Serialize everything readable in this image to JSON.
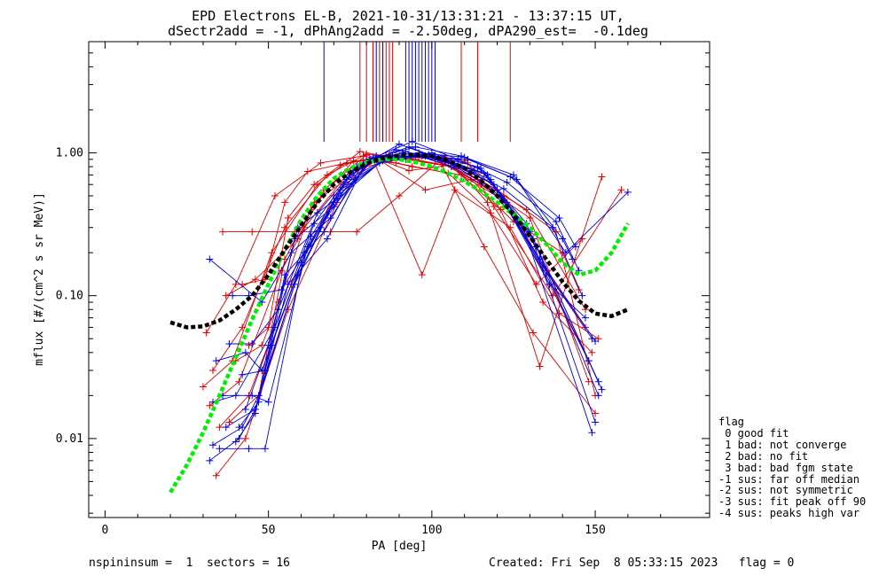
{
  "title_line1": "EPD Electrons EL-B, 2021-10-31/13:31:21 - 13:37:15 UT,",
  "title_line2": "dSectr2add = -1, dPhAng2add = -2.50deg, dPA290_est=  -0.1deg",
  "footer_left": "nspininsum =  1  sectors = 16",
  "footer_right": "Created: Fri Sep  8 05:33:15 2023   flag = 0",
  "legend": {
    "title": "flag",
    "items": [
      " 0 good fit",
      " 1 bad: not converge",
      " 2 bad: no fit",
      " 3 bad: bad fgm state",
      "-1 sus: far off median",
      "-2 sus: not symmetric",
      "-3 sus: fit peak off 90",
      "-4 sus: peaks high var"
    ]
  },
  "colors": {
    "red_series": "#e00000",
    "blue_series": "#0000e0",
    "median_fit": "#000000",
    "alt_fit": "#00ee00"
  },
  "chart_data": {
    "type": "line",
    "xlabel": "PA [deg]",
    "ylabel": "mflux [#/(cm^2 s sr MeV)]",
    "xlim": [
      -5,
      185
    ],
    "ylim": [
      0.0028,
      6.0
    ],
    "yscale": "log",
    "x_ticks": [
      0,
      50,
      100,
      150
    ],
    "x_tick_labels": [
      "0",
      "50",
      "100",
      "150"
    ],
    "y_ticks": [
      0.01,
      0.1,
      1.0
    ],
    "y_tick_labels": [
      "0.01",
      "0.10",
      "1.00"
    ],
    "grid": false,
    "red_series": [
      {
        "x": [
          33,
          42,
          55,
          68,
          80,
          95,
          108,
          122,
          136,
          148
        ],
        "y": [
          0.03,
          0.06,
          0.3,
          0.7,
          0.98,
          0.9,
          0.78,
          0.5,
          0.12,
          0.035
        ]
      },
      {
        "x": [
          31,
          40,
          52,
          66,
          79,
          94,
          109,
          123,
          135,
          147
        ],
        "y": [
          0.055,
          0.12,
          0.5,
          0.85,
          0.95,
          0.8,
          0.7,
          0.45,
          0.15,
          0.06
        ]
      },
      {
        "x": [
          35,
          44,
          57,
          70,
          81,
          96,
          110,
          120,
          138,
          150
        ],
        "y": [
          0.012,
          0.02,
          0.12,
          0.5,
          0.85,
          0.95,
          0.88,
          0.55,
          0.28,
          0.02
        ]
      },
      {
        "x": [
          30,
          39,
          51,
          65,
          78,
          92,
          106,
          121,
          134,
          149
        ],
        "y": [
          0.023,
          0.035,
          0.2,
          0.6,
          1.02,
          0.9,
          0.8,
          0.4,
          0.09,
          0.04
        ]
      },
      {
        "x": [
          36,
          45,
          58,
          69,
          77,
          90,
          104,
          117,
          133,
          152
        ],
        "y": [
          0.28,
          0.28,
          0.28,
          0.28,
          0.28,
          0.5,
          0.95,
          0.45,
          0.032,
          0.68
        ]
      },
      {
        "x": [
          34,
          43,
          56,
          71,
          82,
          97,
          107,
          124,
          139,
          151
        ],
        "y": [
          0.0055,
          0.01,
          0.08,
          0.45,
          0.9,
          0.14,
          0.55,
          0.3,
          0.075,
          0.05
        ]
      },
      {
        "x": [
          32,
          41,
          54,
          67,
          80,
          93,
          111,
          119,
          137,
          158
        ],
        "y": [
          0.017,
          0.025,
          0.15,
          0.55,
          0.97,
          0.75,
          0.85,
          0.42,
          0.1,
          0.55
        ]
      },
      {
        "x": [
          37,
          46,
          59,
          64,
          83,
          98,
          112,
          125,
          140,
          145
        ],
        "y": [
          0.1,
          0.13,
          0.25,
          0.45,
          0.92,
          0.55,
          0.65,
          0.33,
          0.2,
          0.11
        ]
      },
      {
        "x": [
          38,
          47,
          55,
          63,
          76,
          89,
          105,
          118,
          132,
          146
        ],
        "y": [
          0.013,
          0.02,
          0.18,
          0.4,
          0.88,
          0.85,
          0.72,
          0.38,
          0.12,
          0.25
        ]
      },
      {
        "x": [
          40,
          48,
          53,
          61,
          75,
          91,
          103,
          116,
          131,
          150
        ],
        "y": [
          0.035,
          0.045,
          0.09,
          0.3,
          0.75,
          0.92,
          0.83,
          0.22,
          0.055,
          0.015
        ]
      },
      {
        "x": [
          42,
          49,
          55,
          62,
          74,
          87,
          101,
          115,
          130,
          148
        ],
        "y": [
          0.12,
          0.13,
          0.45,
          0.74,
          0.85,
          0.97,
          0.9,
          0.6,
          0.35,
          0.025
        ]
      },
      {
        "x": [
          44,
          50,
          56,
          64,
          72,
          86,
          100,
          114,
          129,
          147
        ],
        "y": [
          0.045,
          0.06,
          0.35,
          0.6,
          0.82,
          0.96,
          0.93,
          0.65,
          0.4,
          0.08
        ]
      }
    ],
    "blue_series": [
      {
        "x": [
          32,
          41,
          46,
          58,
          70,
          84,
          98,
          113,
          128,
          149
        ],
        "y": [
          0.007,
          0.01,
          0.016,
          0.12,
          0.45,
          0.85,
          0.95,
          0.75,
          0.3,
          0.011
        ]
      },
      {
        "x": [
          33,
          42,
          47,
          59,
          71,
          85,
          99,
          114,
          129,
          150
        ],
        "y": [
          0.009,
          0.012,
          0.02,
          0.14,
          0.5,
          0.88,
          0.97,
          0.8,
          0.32,
          0.013
        ]
      },
      {
        "x": [
          34,
          43,
          48,
          60,
          72,
          86,
          100,
          115,
          130,
          151
        ],
        "y": [
          0.035,
          0.04,
          0.03,
          0.17,
          0.55,
          0.9,
          1.0,
          0.78,
          0.28,
          0.025
        ]
      },
      {
        "x": [
          35,
          44,
          49,
          61,
          73,
          87,
          101,
          116,
          131,
          152
        ],
        "y": [
          0.0085,
          0.0085,
          0.0085,
          0.2,
          0.6,
          0.92,
          0.95,
          0.72,
          0.25,
          0.022
        ]
      },
      {
        "x": [
          36,
          45,
          50,
          62,
          74,
          88,
          102,
          117,
          132,
          151
        ],
        "y": [
          0.02,
          0.02,
          0.018,
          0.22,
          0.65,
          0.95,
          0.92,
          0.7,
          0.22,
          0.02
        ]
      },
      {
        "x": [
          37,
          46,
          51,
          63,
          75,
          89,
          103,
          118,
          133,
          150
        ],
        "y": [
          0.012,
          0.016,
          0.045,
          0.26,
          0.7,
          1.05,
          0.9,
          0.65,
          0.18,
          0.048
        ]
      },
      {
        "x": [
          33,
          40,
          52,
          64,
          76,
          90,
          104,
          119,
          134,
          149
        ],
        "y": [
          0.018,
          0.02,
          0.06,
          0.32,
          0.75,
          1.15,
          0.88,
          0.6,
          0.16,
          0.05
        ]
      },
      {
        "x": [
          38,
          45,
          53,
          65,
          77,
          91,
          105,
          120,
          135,
          148
        ],
        "y": [
          0.046,
          0.046,
          0.08,
          0.38,
          0.8,
          1.0,
          0.85,
          0.55,
          0.14,
          0.035
        ]
      },
      {
        "x": [
          39,
          44,
          54,
          66,
          78,
          92,
          106,
          121,
          136,
          147
        ],
        "y": [
          0.1,
          0.1,
          0.11,
          0.3,
          0.82,
          1.02,
          0.8,
          0.5,
          0.12,
          0.07
        ]
      },
      {
        "x": [
          40,
          46,
          55,
          67,
          79,
          93,
          107,
          122,
          137,
          146
        ],
        "y": [
          0.0095,
          0.015,
          0.14,
          0.28,
          0.85,
          1.1,
          0.83,
          0.56,
          0.3,
          0.1
        ]
      },
      {
        "x": [
          41,
          47,
          56,
          68,
          80,
          94,
          108,
          123,
          138,
          145
        ],
        "y": [
          0.012,
          0.018,
          0.12,
          0.25,
          0.88,
          1.2,
          0.9,
          0.62,
          0.33,
          0.15
        ]
      },
      {
        "x": [
          32,
          48,
          57,
          69,
          81,
          95,
          109,
          124,
          139,
          144
        ],
        "y": [
          0.18,
          0.09,
          0.2,
          0.35,
          0.9,
          1.1,
          0.95,
          0.68,
          0.35,
          0.22
        ]
      },
      {
        "x": [
          42,
          49,
          58,
          70,
          82,
          96,
          110,
          125,
          140,
          143
        ],
        "y": [
          0.028,
          0.03,
          0.25,
          0.42,
          0.92,
          1.0,
          0.93,
          0.7,
          0.25,
          0.18
        ]
      },
      {
        "x": [
          43,
          50,
          59,
          71,
          83,
          97,
          111,
          126,
          141,
          160
        ],
        "y": [
          0.016,
          0.045,
          0.3,
          0.48,
          0.95,
          0.95,
          0.9,
          0.65,
          0.2,
          0.53
        ]
      }
    ],
    "fit_black": {
      "x": [
        20,
        25,
        30,
        35,
        40,
        45,
        50,
        55,
        60,
        65,
        70,
        75,
        80,
        85,
        90,
        95,
        100,
        105,
        110,
        115,
        120,
        125,
        130,
        135,
        140,
        145,
        150,
        155,
        160
      ],
      "y": [
        0.065,
        0.06,
        0.061,
        0.067,
        0.08,
        0.1,
        0.14,
        0.21,
        0.31,
        0.45,
        0.6,
        0.73,
        0.84,
        0.92,
        0.96,
        0.97,
        0.95,
        0.88,
        0.78,
        0.64,
        0.5,
        0.37,
        0.26,
        0.18,
        0.125,
        0.092,
        0.075,
        0.072,
        0.08
      ]
    },
    "fit_green": {
      "x": [
        20,
        25,
        30,
        35,
        40,
        45,
        50,
        55,
        60,
        65,
        70,
        75,
        80,
        85,
        90,
        95,
        100,
        105,
        110,
        115,
        120,
        125,
        130,
        135,
        140,
        145,
        150,
        155,
        160
      ],
      "y": [
        0.0042,
        0.0065,
        0.011,
        0.02,
        0.037,
        0.068,
        0.12,
        0.21,
        0.34,
        0.5,
        0.66,
        0.78,
        0.86,
        0.9,
        0.9,
        0.86,
        0.8,
        0.72,
        0.63,
        0.54,
        0.45,
        0.37,
        0.3,
        0.23,
        0.17,
        0.14,
        0.15,
        0.2,
        0.32
      ]
    },
    "peak_markers_red_x": [
      78,
      80,
      82,
      84,
      85,
      86,
      87,
      88,
      109,
      114,
      124
    ],
    "peak_markers_blue_x": [
      67,
      83,
      85,
      92,
      93,
      94,
      95,
      96,
      97,
      98,
      99,
      100,
      101
    ]
  }
}
